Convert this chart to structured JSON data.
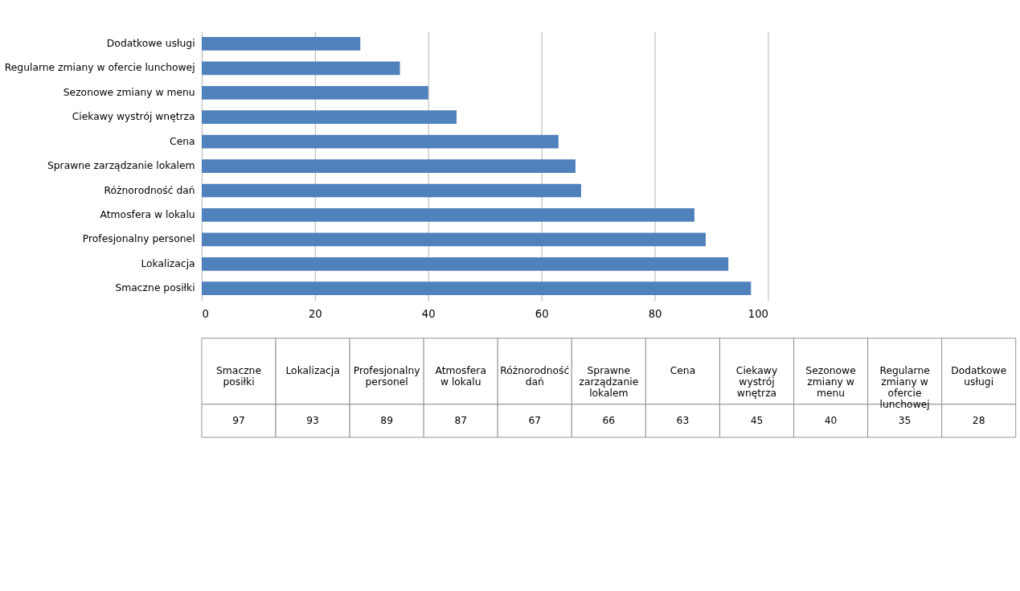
{
  "chart_data": [
    {
      "type": "bar",
      "orientation": "horizontal",
      "categories": [
        "Dodatkowe usługi",
        "Regularne zmiany w ofercie lunchowej",
        "Sezonowe zmiany  w menu",
        "Ciekawy wystrój wnętrza",
        "Cena",
        "Sprawne zarządzanie  lokalem",
        "Różnorodność dań",
        "Atmosfera w lokalu",
        "Profesjonalny personel",
        "Lokalizacja",
        "Smaczne posiłki"
      ],
      "series": [
        {
          "color": "#4f81bd",
          "values": [
            28,
            35,
            40,
            45,
            63,
            66,
            67,
            87,
            89,
            93,
            97
          ]
        }
      ],
      "xlim": [
        0,
        100
      ],
      "xticks": [
        0,
        20,
        40,
        60,
        80,
        100
      ],
      "grid": "x"
    },
    {
      "type": "other",
      "categories": [
        "Smaczne posiłki",
        "Lokalizacja",
        "Profesjonalny personel",
        "Atmosfera w lokalu",
        "Różnorodność dań",
        "Sprawne zarządzanie lokalem",
        "Cena",
        "Ciekawy wystrój wnętrza",
        "Sezonowe zmiany w menu",
        "Regularne zmiany w ofercie lunchowej",
        "Dodatkowe usługi"
      ],
      "values": [
        97,
        93,
        89,
        87,
        67,
        66,
        63,
        45,
        40,
        35,
        28
      ],
      "data_labels": true
    }
  ]
}
